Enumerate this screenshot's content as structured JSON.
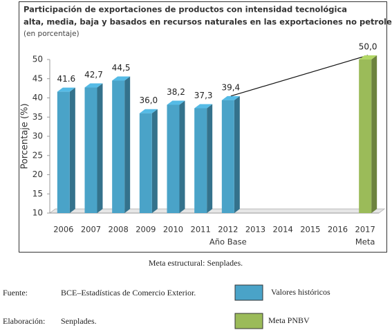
{
  "chart_data": {
    "type": "bar",
    "title": [
      "Participación de exportaciones de productos con intensidad tecnológica",
      "alta, media, baja y basados en recursos naturales en las exportaciones no petroleras"
    ],
    "subtitle": "(en porcentaje)",
    "y_label": "Porcentaje (%)",
    "categories": [
      "2006",
      "2007",
      "2008",
      "2009",
      "2010",
      "2011",
      "2012",
      "2013",
      "2014",
      "2015",
      "2016",
      "2017"
    ],
    "category_notes": [
      null,
      null,
      null,
      null,
      null,
      null,
      "Año Base",
      null,
      null,
      null,
      null,
      "Meta"
    ],
    "series": [
      {
        "name": "Valores históricos",
        "color": "#4aa3c8",
        "values": [
          41.6,
          42.7,
          44.5,
          36.0,
          38.2,
          37.3,
          39.4,
          null,
          null,
          null,
          null,
          null
        ],
        "value_labels": [
          "41.6",
          "42,7",
          "44,5",
          "36,0",
          "38,2",
          "37,3",
          "39,4",
          null,
          null,
          null,
          null,
          null
        ]
      },
      {
        "name": "Meta PNBV",
        "color": "#9bbb59",
        "values": [
          null,
          null,
          null,
          null,
          null,
          null,
          null,
          null,
          null,
          null,
          null,
          50.0
        ],
        "value_labels": [
          null,
          null,
          null,
          null,
          null,
          null,
          null,
          null,
          null,
          null,
          null,
          "50,0"
        ]
      }
    ],
    "ylim": [
      10,
      50
    ],
    "yticks": [
      10,
      15,
      20,
      25,
      30,
      35,
      40,
      45,
      50
    ],
    "grid": false
  },
  "caption": "Meta estructural: Senplades.",
  "source": {
    "label": "Fuente:",
    "text": "BCE–Estadísticas de Comercio Exterior."
  },
  "prepared_by": {
    "label": "Elaboración:",
    "text": "Senplades."
  }
}
